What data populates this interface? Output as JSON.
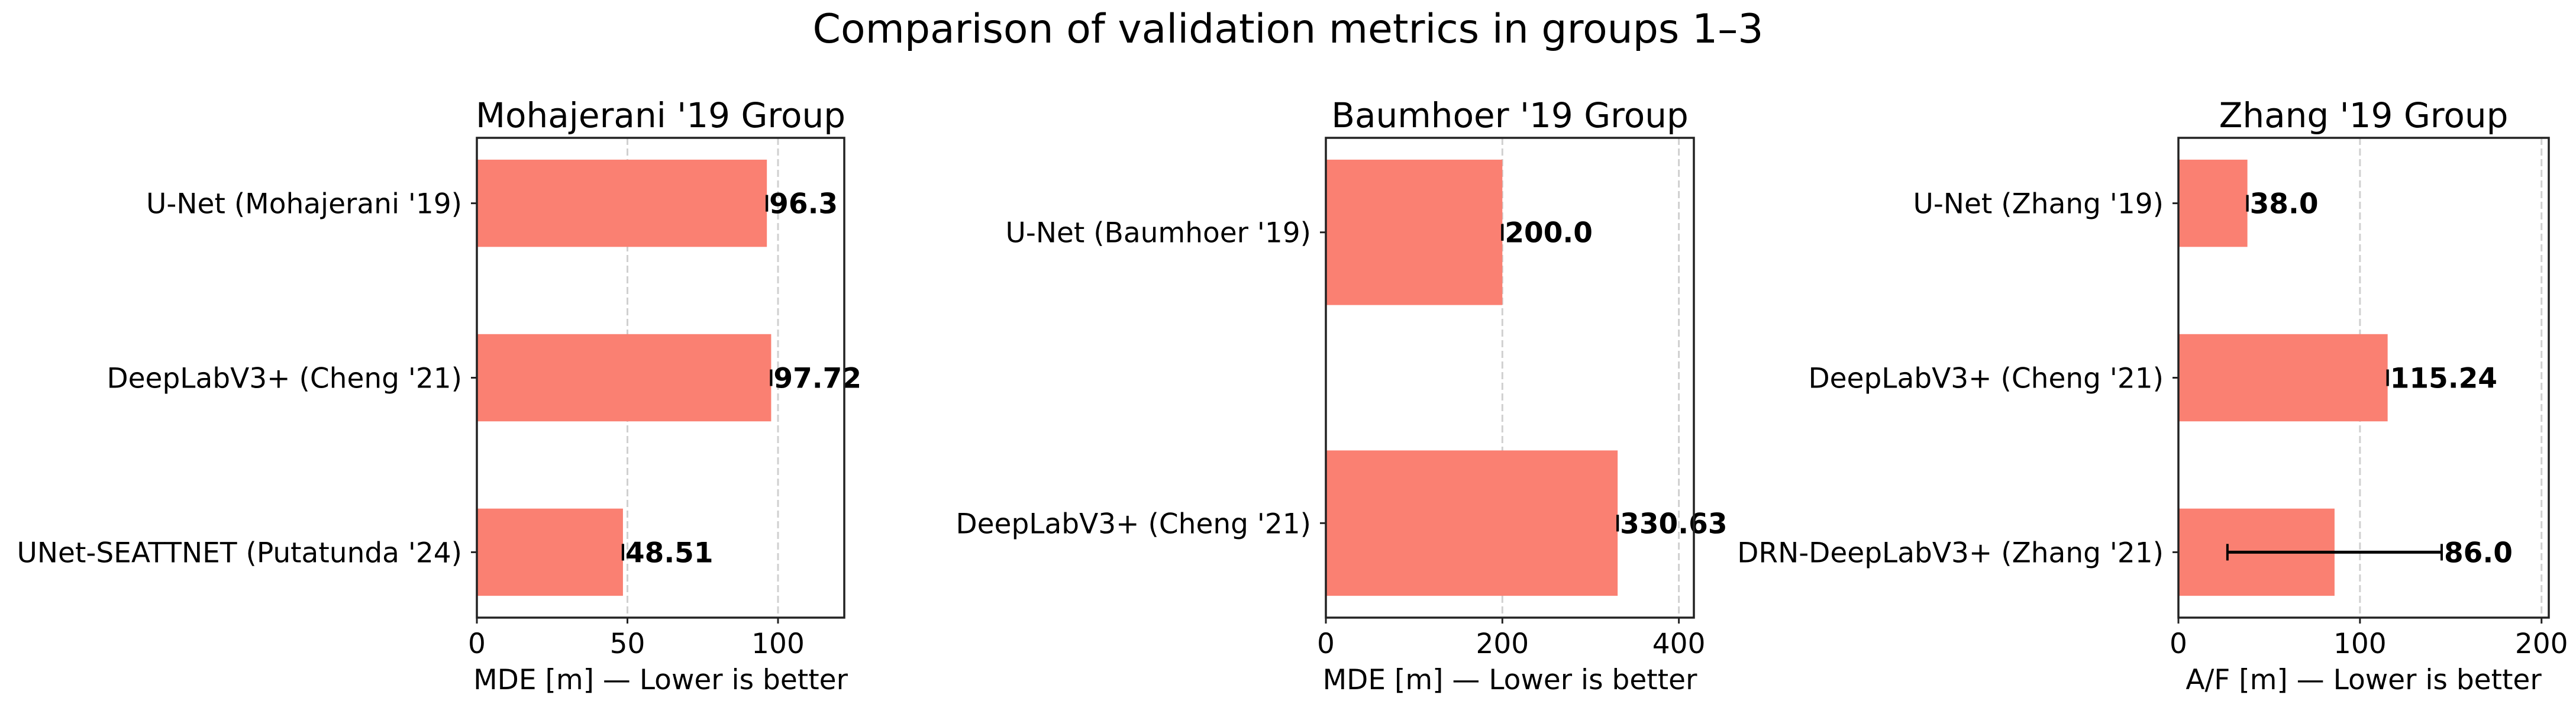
{
  "chart_data": {
    "type": "bar",
    "orientation": "horizontal",
    "title": "Comparison of validation metrics in groups 1–3",
    "bar_color": "#FA8072",
    "grid": "x, dashed",
    "panels": [
      {
        "title": "Mohajerani '19 Group",
        "xlabel": "MDE [m] — Lower is better",
        "categories": [
          "U-Net (Mohajerani '19)",
          "DeepLabV3+ (Cheng '21)",
          "UNet-SEATTNET (Putatunda '24)"
        ],
        "values": [
          96.3,
          97.72,
          48.51
        ],
        "errors": [
          0,
          0,
          0
        ],
        "labels": [
          "96.3",
          "97.72",
          "48.51"
        ],
        "xlim": [
          0,
          122
        ],
        "xticks": [
          0,
          50,
          100
        ]
      },
      {
        "title": "Baumhoer '19 Group",
        "xlabel": "MDE [m] — Lower is better",
        "categories": [
          "U-Net (Baumhoer '19)",
          "DeepLabV3+ (Cheng '21)"
        ],
        "values": [
          200.0,
          330.63
        ],
        "errors": [
          0,
          0
        ],
        "labels": [
          "200.0",
          "330.63"
        ],
        "xlim": [
          0,
          417
        ],
        "xticks": [
          0,
          200,
          400
        ]
      },
      {
        "title": "Zhang '19 Group",
        "xlabel": "A/F [m] — Lower is better",
        "categories": [
          "U-Net (Zhang '19)",
          "DeepLabV3+ (Cheng '21)",
          "DRN-DeepLabV3+ (Zhang '21)"
        ],
        "values": [
          38.0,
          115.24,
          86.0
        ],
        "errors": [
          0,
          0,
          59
        ],
        "labels": [
          "38.0",
          "115.24",
          "86.0"
        ],
        "xlim": [
          0,
          204
        ],
        "xticks": [
          0,
          100,
          200
        ]
      }
    ]
  }
}
